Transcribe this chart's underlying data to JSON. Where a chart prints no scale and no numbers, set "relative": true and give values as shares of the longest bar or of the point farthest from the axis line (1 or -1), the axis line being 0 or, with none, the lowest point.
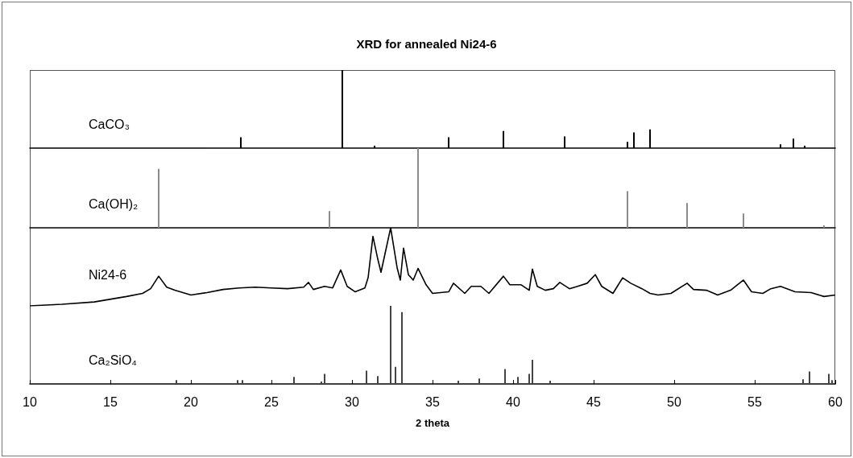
{
  "chart_data": [
    {
      "type": "bar",
      "title": "XRD for annealed Ni24-6",
      "relative": true,
      "xlim": [
        10,
        60
      ],
      "xticks": [
        10,
        15,
        20,
        25,
        30,
        35,
        40,
        45,
        50,
        55,
        60
      ],
      "tick_labels": false,
      "x": [
        23.1,
        29.4,
        31.4,
        36.0,
        39.4,
        43.2,
        47.1,
        47.5,
        48.5,
        56.6,
        57.4,
        58.1
      ],
      "series": [
        {
          "name": "CaCO₃",
          "color": "#000000",
          "values": [
            0.14,
            1,
            0.03,
            0.14,
            0.22,
            0.15,
            0.08,
            0.2,
            0.24,
            0.05,
            0.12,
            0.03
          ]
        }
      ]
    },
    {
      "type": "bar",
      "relative": true,
      "xlim": [
        10,
        60
      ],
      "xticks": [
        10,
        15,
        20,
        25,
        30,
        35,
        40,
        45,
        50,
        55,
        60
      ],
      "tick_labels": false,
      "x": [
        18.0,
        28.6,
        34.1,
        47.1,
        50.8,
        54.3,
        59.3
      ],
      "series": [
        {
          "name": "Ca(OH)₂",
          "color": "#8c8c8c",
          "values": [
            0.74,
            0.21,
            1,
            0.46,
            0.31,
            0.18,
            0.03
          ]
        }
      ]
    },
    {
      "type": "line",
      "relative": true,
      "xlim": [
        10,
        60
      ],
      "xticks": [
        10,
        15,
        20,
        25,
        30,
        35,
        40,
        45,
        50,
        55,
        60
      ],
      "tick_labels": false,
      "x": [
        10,
        12,
        14,
        16,
        17,
        17.5,
        18,
        18.5,
        19,
        20,
        21,
        22,
        23,
        24,
        25,
        26,
        27,
        27.3,
        27.6,
        28.3,
        28.8,
        29.3,
        29.7,
        30.2,
        30.8,
        31.0,
        31.3,
        31.6,
        31.8,
        32.4,
        32.8,
        33.0,
        33.2,
        33.5,
        33.8,
        34.1,
        34.6,
        35,
        36,
        36.3,
        37.0,
        37.4,
        38,
        38.5,
        39.4,
        39.8,
        40.5,
        41.0,
        41.2,
        41.5,
        42,
        42.5,
        42.9,
        43.5,
        44,
        44.6,
        45.1,
        45.5,
        46.2,
        46.8,
        47.3,
        48,
        48.5,
        49,
        49.8,
        50.8,
        51.2,
        52,
        52.7,
        53.5,
        54.3,
        54.8,
        55.5,
        56,
        56.6,
        57.5,
        58.5,
        59.3,
        60
      ],
      "series": [
        {
          "name": "Ni24-6",
          "color": "#000000",
          "values": [
            0,
            0.02,
            0.05,
            0.12,
            0.16,
            0.22,
            0.38,
            0.24,
            0.2,
            0.14,
            0.17,
            0.21,
            0.23,
            0.24,
            0.23,
            0.22,
            0.24,
            0.3,
            0.21,
            0.25,
            0.23,
            0.46,
            0.25,
            0.18,
            0.23,
            0.36,
            0.89,
            0.6,
            0.43,
            1,
            0.49,
            0.33,
            0.74,
            0.4,
            0.33,
            0.48,
            0.27,
            0.16,
            0.18,
            0.29,
            0.16,
            0.25,
            0.25,
            0.16,
            0.38,
            0.27,
            0.27,
            0.2,
            0.47,
            0.25,
            0.2,
            0.22,
            0.3,
            0.22,
            0.25,
            0.29,
            0.4,
            0.25,
            0.16,
            0.36,
            0.29,
            0.22,
            0.16,
            0.14,
            0.16,
            0.29,
            0.21,
            0.2,
            0.14,
            0.2,
            0.33,
            0.18,
            0.16,
            0.22,
            0.25,
            0.18,
            0.17,
            0.12,
            0.14
          ]
        }
      ]
    },
    {
      "type": "bar",
      "xlabel": "2 theta",
      "relative": true,
      "xlim": [
        10,
        60
      ],
      "xticks": [
        10,
        15,
        20,
        25,
        30,
        35,
        40,
        45,
        50,
        55,
        60
      ],
      "tick_labels": "x",
      "x": [
        19.1,
        22.9,
        23.2,
        26.4,
        28.1,
        28.3,
        30.9,
        31.6,
        32.4,
        32.7,
        33.1,
        36.6,
        37.9,
        39.5,
        40.3,
        41.0,
        41.2,
        42.3,
        58.0,
        58.4,
        59.6,
        59.8
      ],
      "series": [
        {
          "name": "Ca₂SiO₄",
          "color": "#444444",
          "values": [
            0.05,
            0.05,
            0.05,
            0.09,
            0.03,
            0.13,
            0.17,
            0.1,
            1,
            0.22,
            0.92,
            0.04,
            0.07,
            0.19,
            0.09,
            0.13,
            0.31,
            0.04,
            0.06,
            0.16,
            0.13,
            0.05
          ]
        }
      ]
    }
  ]
}
